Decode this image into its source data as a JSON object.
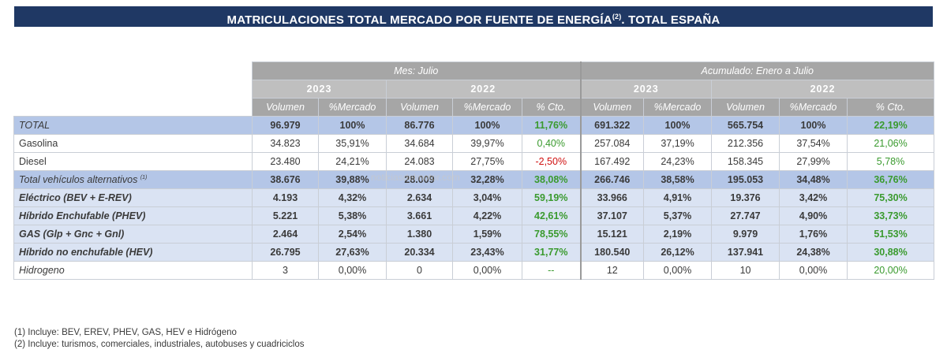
{
  "title": {
    "main": "MATRICULACIONES TOTAL MERCADO POR FUENTE DE ENERGÍA",
    "sup": "(2)",
    "tail": ". TOTAL ESPAÑA"
  },
  "header": {
    "group_month": "Mes: Julio",
    "group_acc": "Acumulado: Enero a Julio",
    "year_2023": "2023",
    "year_2022": "2022",
    "col_volumen": "Volumen",
    "col_mercado": "%Mercado",
    "col_cto": "% Cto."
  },
  "rows": [
    {
      "label": "TOTAL",
      "sup": "",
      "v23": "96.979",
      "m23": "100%",
      "v22": "86.776",
      "m22": "100%",
      "c": "11,76%",
      "av23": "691.322",
      "am23": "100%",
      "av22": "565.754",
      "am22": "100%",
      "ac": "22,19%"
    },
    {
      "label": "Gasolina",
      "sup": "",
      "v23": "34.823",
      "m23": "35,91%",
      "v22": "34.684",
      "m22": "39,97%",
      "c": "0,40%",
      "av23": "257.084",
      "am23": "37,19%",
      "av22": "212.356",
      "am22": "37,54%",
      "ac": "21,06%"
    },
    {
      "label": "Diesel",
      "sup": "",
      "v23": "23.480",
      "m23": "24,21%",
      "v22": "24.083",
      "m22": "27,75%",
      "c": "-2,50%",
      "av23": "167.492",
      "am23": "24,23%",
      "av22": "158.345",
      "am22": "27,99%",
      "ac": "5,78%"
    },
    {
      "label": "Total vehículos alternativos",
      "sup": "(1)",
      "v23": "38.676",
      "m23": "39,88%",
      "v22": "28.009",
      "m22": "32,28%",
      "c": "38,08%",
      "av23": "266.746",
      "am23": "38,58%",
      "av22": "195.053",
      "am22": "34,48%",
      "ac": "36,76%"
    },
    {
      "label": "Eléctrico (BEV + E-REV)",
      "sup": "",
      "v23": "4.193",
      "m23": "4,32%",
      "v22": "2.634",
      "m22": "3,04%",
      "c": "59,19%",
      "av23": "33.966",
      "am23": "4,91%",
      "av22": "19.376",
      "am22": "3,42%",
      "ac": "75,30%"
    },
    {
      "label": "Híbrido Enchufable (PHEV)",
      "sup": "",
      "v23": "5.221",
      "m23": "5,38%",
      "v22": "3.661",
      "m22": "4,22%",
      "c": "42,61%",
      "av23": "37.107",
      "am23": "5,37%",
      "av22": "27.747",
      "am22": "4,90%",
      "ac": "33,73%"
    },
    {
      "label": "GAS (Glp + Gnc + Gnl)",
      "sup": "",
      "v23": "2.464",
      "m23": "2,54%",
      "v22": "1.380",
      "m22": "1,59%",
      "c": "78,55%",
      "av23": "15.121",
      "am23": "2,19%",
      "av22": "9.979",
      "am22": "1,76%",
      "ac": "51,53%"
    },
    {
      "label": "Híbrido no enchufable (HEV)",
      "sup": "",
      "v23": "26.795",
      "m23": "27,63%",
      "v22": "20.334",
      "m22": "23,43%",
      "c": "31,77%",
      "av23": "180.540",
      "am23": "26,12%",
      "av22": "137.941",
      "am22": "24,38%",
      "ac": "30,88%"
    },
    {
      "label": "Hidrogeno",
      "sup": "",
      "v23": "3",
      "m23": "0,00%",
      "v22": "0",
      "m22": "0,00%",
      "c": "--",
      "av23": "12",
      "am23": "0,00%",
      "av22": "10",
      "am22": "0,00%",
      "ac": "20,00%"
    }
  ],
  "watermark": "noticiasdelmotor.com",
  "footnotes": [
    "(1) Incluye: BEV, EREV, PHEV, GAS, HEV e Hidrógeno",
    "(2) Incluye: turismos, comerciales, industriales, autobuses y cuadriciclos"
  ],
  "colors": {
    "title_bg": "#1f3864",
    "header_gray": "#a6a6a6",
    "total_row": "#b4c6e7",
    "alt_row": "#dae3f3",
    "positive": "#3a9a2e",
    "negative": "#d01010"
  }
}
